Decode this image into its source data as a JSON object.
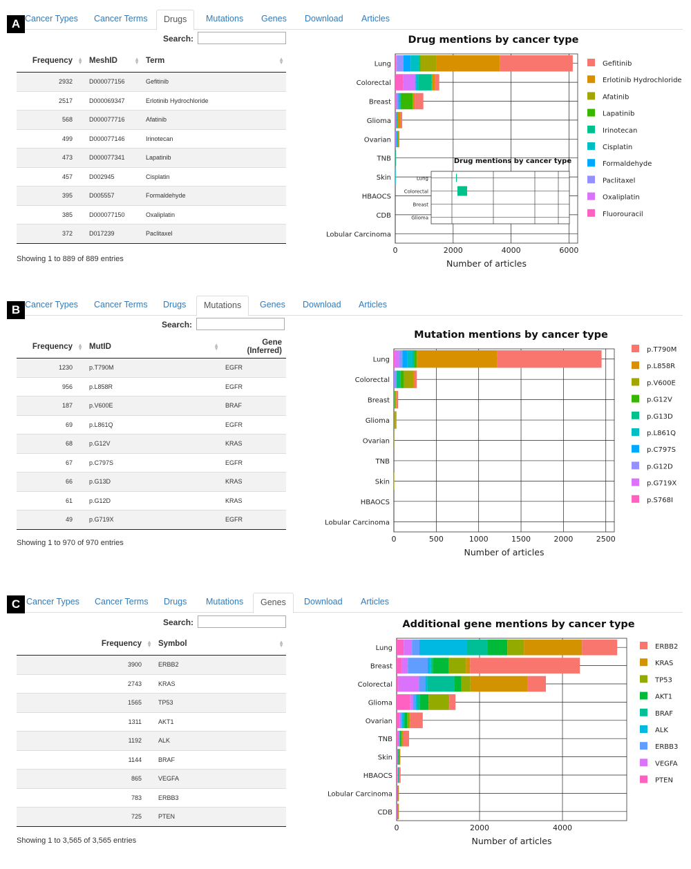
{
  "tabs": [
    "Cancer Types",
    "Cancer Terms",
    "Drugs",
    "Mutations",
    "Genes",
    "Download",
    "Articles"
  ],
  "search_label": "Search:",
  "panels": [
    {
      "letter": "A",
      "active_tab": "Drugs",
      "table": {
        "columns": [
          "Frequency",
          "MeshID",
          "Term"
        ],
        "rows": [
          [
            "2932",
            "D000077156",
            "Gefitinib"
          ],
          [
            "2517",
            "D000069347",
            "Erlotinib Hydrochloride"
          ],
          [
            "568",
            "D000077716",
            "Afatinib"
          ],
          [
            "499",
            "D000077146",
            "Irinotecan"
          ],
          [
            "473",
            "D000077341",
            "Lapatinib"
          ],
          [
            "457",
            "D002945",
            "Cisplatin"
          ],
          [
            "395",
            "D005557",
            "Formaldehyde"
          ],
          [
            "385",
            "D000077150",
            "Oxaliplatin"
          ],
          [
            "372",
            "D017239",
            "Paclitaxel"
          ]
        ]
      },
      "info": "Showing 1 to 889 of 889 entries"
    },
    {
      "letter": "B",
      "active_tab": "Mutations",
      "table": {
        "columns": [
          "Frequency",
          "MutID",
          "Gene (Inferred)"
        ],
        "rows": [
          [
            "1230",
            "p.T790M",
            "EGFR"
          ],
          [
            "956",
            "p.L858R",
            "EGFR"
          ],
          [
            "187",
            "p.V600E",
            "BRAF"
          ],
          [
            "69",
            "p.L861Q",
            "EGFR"
          ],
          [
            "68",
            "p.G12V",
            "KRAS"
          ],
          [
            "67",
            "p.C797S",
            "EGFR"
          ],
          [
            "66",
            "p.G13D",
            "KRAS"
          ],
          [
            "61",
            "p.G12D",
            "KRAS"
          ],
          [
            "49",
            "p.G719X",
            "EGFR"
          ]
        ]
      },
      "info": "Showing 1 to 970 of 970 entries"
    },
    {
      "letter": "C",
      "active_tab": "Genes",
      "table": {
        "columns": [
          "Frequency",
          "Symbol"
        ],
        "rows": [
          [
            "3900",
            "ERBB2"
          ],
          [
            "2743",
            "KRAS"
          ],
          [
            "1565",
            "TP53"
          ],
          [
            "1311",
            "AKT1"
          ],
          [
            "1192",
            "ALK"
          ],
          [
            "1144",
            "BRAF"
          ],
          [
            "865",
            "VEGFA"
          ],
          [
            "783",
            "ERBB3"
          ],
          [
            "725",
            "PTEN"
          ]
        ]
      },
      "info": "Showing 1 to 3,565 of 3,565 entries"
    }
  ],
  "chart_data": [
    {
      "type": "bar",
      "orientation": "horizontal",
      "stacked": true,
      "title": "Drug mentions by cancer type",
      "xlabel": "Number of articles",
      "xlim": [
        0,
        6300
      ],
      "xticks": [
        0,
        2000,
        4000,
        6000
      ],
      "categories": [
        "Lung",
        "Colorectal",
        "Breast",
        "Glioma",
        "Ovarian",
        "TNB",
        "Skin",
        "HBAOCS",
        "CDB",
        "Lobular Carcinoma"
      ],
      "legend_position": "right",
      "series": [
        {
          "name": "Fluorouracil",
          "color": "#ff61c3",
          "values": [
            30,
            280,
            20,
            10,
            5,
            0,
            0,
            0,
            0,
            0
          ]
        },
        {
          "name": "Oxaliplatin",
          "color": "#db72fb",
          "values": [
            20,
            400,
            10,
            5,
            5,
            0,
            0,
            0,
            0,
            0
          ]
        },
        {
          "name": "Paclitaxel",
          "color": "#9590ff",
          "values": [
            230,
            20,
            80,
            10,
            30,
            5,
            0,
            0,
            0,
            0
          ]
        },
        {
          "name": "Formaldehyde",
          "color": "#00a9ff",
          "values": [
            250,
            30,
            40,
            20,
            20,
            5,
            2,
            0,
            0,
            0
          ]
        },
        {
          "name": "Cisplatin",
          "color": "#00bfc4",
          "values": [
            280,
            80,
            40,
            20,
            30,
            5,
            2,
            0,
            0,
            0
          ]
        },
        {
          "name": "Irinotecan",
          "color": "#00c08b",
          "values": [
            30,
            450,
            10,
            10,
            5,
            0,
            0,
            0,
            0,
            0
          ]
        },
        {
          "name": "Lapatinib",
          "color": "#39b600",
          "values": [
            30,
            10,
            400,
            10,
            5,
            5,
            0,
            0,
            0,
            0
          ]
        },
        {
          "name": "Afatinib",
          "color": "#a3a500",
          "values": [
            540,
            10,
            10,
            5,
            5,
            0,
            0,
            0,
            0,
            0
          ]
        },
        {
          "name": "Erlotinib Hydrochloride",
          "color": "#d89000",
          "values": [
            2200,
            100,
            60,
            90,
            20,
            0,
            0,
            0,
            0,
            0
          ]
        },
        {
          "name": "Gefitinib",
          "color": "#f8766d",
          "values": [
            2520,
            140,
            300,
            60,
            20,
            0,
            0,
            0,
            0,
            0
          ]
        }
      ],
      "inset": {
        "title": "Drug mentions by cancer type",
        "categories": [
          "Lung",
          "Colorectal",
          "Breast",
          "Glioma"
        ]
      }
    },
    {
      "type": "bar",
      "orientation": "horizontal",
      "stacked": true,
      "title": "Mutation mentions by cancer type",
      "xlabel": "Number of articles",
      "xlim": [
        0,
        2600
      ],
      "xticks": [
        0,
        500,
        1000,
        1500,
        2000,
        2500
      ],
      "categories": [
        "Lung",
        "Colorectal",
        "Breast",
        "Glioma",
        "Ovarian",
        "TNB",
        "Skin",
        "HBAOCS",
        "Lobular Carcinoma"
      ],
      "legend_position": "right",
      "series": [
        {
          "name": "p.S768I",
          "color": "#ff61c3",
          "values": [
            15,
            0,
            0,
            0,
            0,
            0,
            0,
            0,
            0
          ]
        },
        {
          "name": "p.G719X",
          "color": "#db72fb",
          "values": [
            45,
            0,
            0,
            0,
            0,
            0,
            0,
            0,
            0
          ]
        },
        {
          "name": "p.G12D",
          "color": "#9590ff",
          "values": [
            40,
            30,
            2,
            2,
            2,
            0,
            0,
            0,
            0
          ]
        },
        {
          "name": "p.C797S",
          "color": "#00a9ff",
          "values": [
            60,
            0,
            0,
            0,
            0,
            0,
            0,
            0,
            0
          ]
        },
        {
          "name": "p.L861Q",
          "color": "#00bfc4",
          "values": [
            60,
            0,
            0,
            0,
            0,
            0,
            0,
            0,
            0
          ]
        },
        {
          "name": "p.G13D",
          "color": "#00c08b",
          "values": [
            20,
            50,
            2,
            0,
            0,
            0,
            0,
            0,
            0
          ]
        },
        {
          "name": "p.G12V",
          "color": "#39b600",
          "values": [
            25,
            40,
            2,
            0,
            0,
            0,
            0,
            0,
            0
          ]
        },
        {
          "name": "p.V600E",
          "color": "#a3a500",
          "values": [
            15,
            100,
            20,
            20,
            2,
            0,
            2,
            0,
            0
          ]
        },
        {
          "name": "p.L858R",
          "color": "#d89000",
          "values": [
            940,
            20,
            5,
            5,
            0,
            0,
            0,
            0,
            0
          ]
        },
        {
          "name": "p.T790M",
          "color": "#f8766d",
          "values": [
            1230,
            30,
            20,
            5,
            0,
            0,
            0,
            0,
            0
          ]
        }
      ]
    },
    {
      "type": "bar",
      "orientation": "horizontal",
      "stacked": true,
      "title": "Additional gene mentions by cancer type",
      "xlabel": "Number of articles",
      "xlim": [
        0,
        5550
      ],
      "xticks": [
        0,
        2000,
        4000
      ],
      "categories": [
        "Lung",
        "Breast",
        "Colorectal",
        "Glioma",
        "Ovarian",
        "TNB",
        "Skin",
        "HBAOCS",
        "Lobular Carcinoma",
        "CDB"
      ],
      "legend_position": "right",
      "series": [
        {
          "name": "PTEN",
          "color": "#ff61c3",
          "values": [
            170,
            120,
            40,
            320,
            50,
            30,
            10,
            20,
            10,
            10
          ]
        },
        {
          "name": "VEGFA",
          "color": "#db72fb",
          "values": [
            200,
            150,
            500,
            80,
            40,
            20,
            5,
            10,
            5,
            5
          ]
        },
        {
          "name": "ERBB3",
          "color": "#619cff",
          "values": [
            180,
            480,
            150,
            60,
            40,
            10,
            5,
            5,
            5,
            5
          ]
        },
        {
          "name": "ALK",
          "color": "#00b9e3",
          "values": [
            1150,
            80,
            50,
            40,
            30,
            10,
            5,
            5,
            5,
            5
          ]
        },
        {
          "name": "BRAF",
          "color": "#00bf96",
          "values": [
            500,
            40,
            650,
            60,
            30,
            10,
            20,
            5,
            5,
            5
          ]
        },
        {
          "name": "AKT1",
          "color": "#00ba38",
          "values": [
            470,
            380,
            170,
            210,
            60,
            30,
            20,
            5,
            5,
            5
          ]
        },
        {
          "name": "TP53",
          "color": "#93aa00",
          "values": [
            400,
            420,
            220,
            480,
            60,
            30,
            10,
            10,
            5,
            5
          ]
        },
        {
          "name": "KRAS",
          "color": "#d39200",
          "values": [
            1400,
            100,
            1380,
            20,
            20,
            10,
            5,
            5,
            5,
            5
          ]
        },
        {
          "name": "ERBB2",
          "color": "#f8766d",
          "values": [
            850,
            2650,
            440,
            150,
            300,
            150,
            10,
            30,
            10,
            10
          ]
        }
      ]
    }
  ]
}
